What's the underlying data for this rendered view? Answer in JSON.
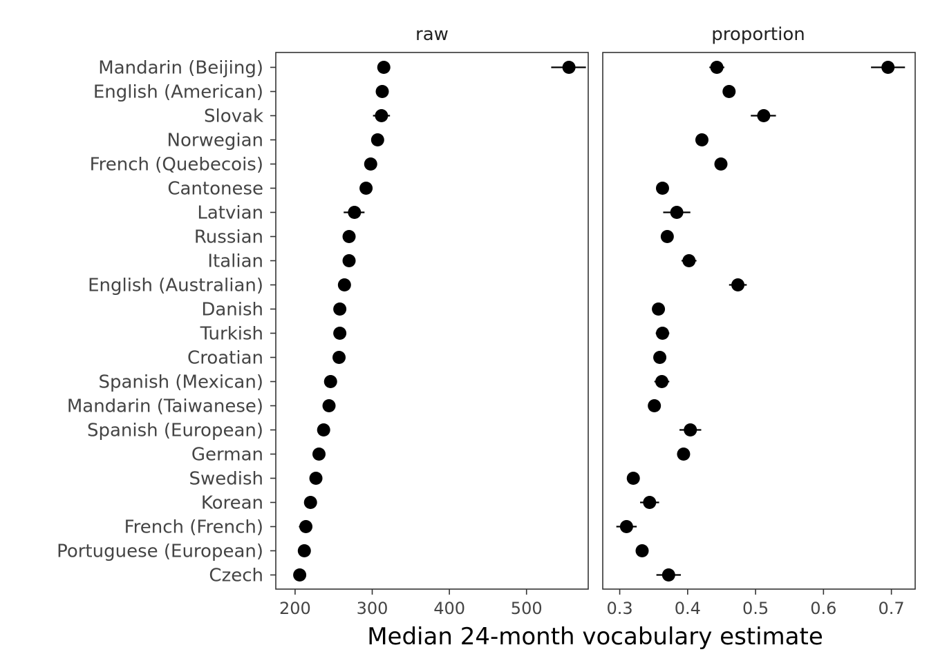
{
  "chart_data": {
    "type": "scatter",
    "xlabel": "Median 24-month vocabulary estimate",
    "categories": [
      "Mandarin (Beijing)",
      "English (American)",
      "Slovak",
      "Norwegian",
      "French (Quebecois)",
      "Cantonese",
      "Latvian",
      "Russian",
      "Italian",
      "English (Australian)",
      "Danish",
      "Turkish",
      "Croatian",
      "Spanish (Mexican)",
      "Mandarin (Taiwanese)",
      "Spanish (European)",
      "German",
      "Swedish",
      "Korean",
      "French (French)",
      "Portuguese (European)",
      "Czech"
    ],
    "panels": [
      {
        "title": "raw",
        "xlim": [
          175,
          580
        ],
        "xticks": [
          "200",
          "300",
          "400",
          "500"
        ],
        "series": [
          {
            "values": [
              315,
              313,
              312,
              307,
              298,
              292,
              277,
              270,
              270,
              264,
              258,
              258,
              257,
              246,
              244,
              237,
              231,
              227,
              220,
              214,
              212,
              206
            ]
          },
          {
            "values": [
              555
            ]
          }
        ],
        "lower": [
          [
            308,
            308,
            301,
            302,
            293,
            287,
            263,
            265,
            265,
            259,
            254,
            253,
            252,
            240,
            240,
            229,
            226,
            222,
            214,
            205,
            207,
            198
          ],
          [
            532
          ]
        ],
        "upper": [
          [
            321,
            318,
            323,
            312,
            303,
            297,
            290,
            275,
            275,
            269,
            263,
            263,
            262,
            252,
            249,
            245,
            236,
            232,
            226,
            222,
            217,
            214
          ],
          [
            577
          ]
        ]
      },
      {
        "title": "proportion",
        "xlim": [
          0.275,
          0.735
        ],
        "xticks": [
          "0.3",
          "0.4",
          "0.5",
          "0.6",
          "0.7"
        ],
        "series": [
          {
            "values": [
              0.443,
              0.461,
              0.512,
              0.421,
              0.449,
              0.363,
              0.384,
              0.37,
              0.402,
              0.474,
              0.357,
              0.363,
              0.359,
              0.362,
              0.351,
              0.404,
              0.394,
              0.32,
              0.344,
              0.31,
              0.333,
              0.372
            ]
          },
          {
            "values": [
              0.695
            ]
          }
        ],
        "lower": [
          [
            0.432,
            0.455,
            0.493,
            0.416,
            0.444,
            0.358,
            0.364,
            0.365,
            0.391,
            0.461,
            0.352,
            0.353,
            0.354,
            0.351,
            0.346,
            0.388,
            0.389,
            0.315,
            0.33,
            0.295,
            0.328,
            0.354
          ],
          [
            0.67
          ]
        ],
        "upper": [
          [
            0.454,
            0.468,
            0.53,
            0.426,
            0.454,
            0.368,
            0.404,
            0.375,
            0.413,
            0.487,
            0.362,
            0.373,
            0.364,
            0.373,
            0.356,
            0.42,
            0.399,
            0.325,
            0.358,
            0.325,
            0.338,
            0.39
          ],
          [
            0.72
          ]
        ]
      }
    ]
  }
}
